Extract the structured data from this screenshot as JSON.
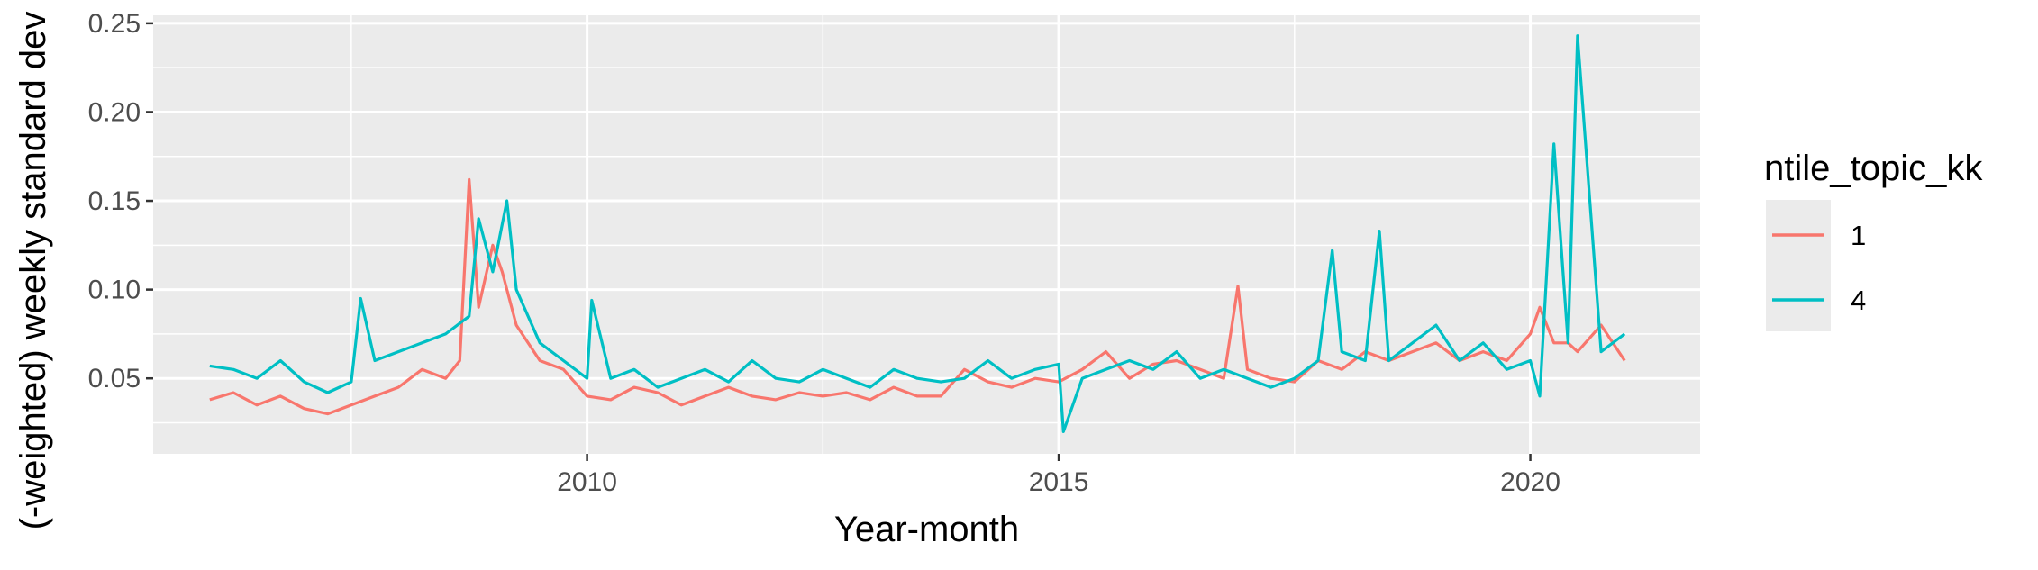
{
  "chart_data": {
    "type": "line",
    "title": "",
    "xlabel": "Year-month",
    "ylabel": "(-weighted) weekly standard dev",
    "xlim": [
      2005.4,
      2021.8
    ],
    "ylim": [
      0.0075,
      0.2545
    ],
    "x_ticks": [
      2010,
      2015,
      2020
    ],
    "x_tick_labels": [
      "2010",
      "2015",
      "2020"
    ],
    "y_ticks": [
      0.05,
      0.1,
      0.15,
      0.2,
      0.25
    ],
    "y_tick_labels": [
      "0.05",
      "0.10",
      "0.15",
      "0.20",
      "0.25"
    ],
    "grid": true,
    "legend": {
      "title": "ntile_topic_kk",
      "position": "right"
    },
    "series": [
      {
        "name": "1",
        "color": "#F8766D",
        "x": [
          2006.0,
          2006.25,
          2006.5,
          2006.75,
          2007.0,
          2007.25,
          2007.5,
          2007.75,
          2008.0,
          2008.25,
          2008.5,
          2008.65,
          2008.75,
          2008.85,
          2009.0,
          2009.1,
          2009.25,
          2009.5,
          2009.75,
          2010.0,
          2010.25,
          2010.5,
          2010.75,
          2011.0,
          2011.25,
          2011.5,
          2011.75,
          2012.0,
          2012.25,
          2012.5,
          2012.75,
          2013.0,
          2013.25,
          2013.5,
          2013.75,
          2014.0,
          2014.25,
          2014.5,
          2014.75,
          2015.0,
          2015.25,
          2015.5,
          2015.75,
          2016.0,
          2016.25,
          2016.5,
          2016.75,
          2016.9,
          2017.0,
          2017.25,
          2017.5,
          2017.75,
          2018.0,
          2018.25,
          2018.5,
          2018.75,
          2019.0,
          2019.25,
          2019.5,
          2019.75,
          2020.0,
          2020.1,
          2020.25,
          2020.4,
          2020.5,
          2020.75,
          2021.0
        ],
        "y": [
          0.038,
          0.042,
          0.035,
          0.04,
          0.033,
          0.03,
          0.035,
          0.04,
          0.045,
          0.055,
          0.05,
          0.06,
          0.162,
          0.09,
          0.125,
          0.11,
          0.08,
          0.06,
          0.055,
          0.04,
          0.038,
          0.045,
          0.042,
          0.035,
          0.04,
          0.045,
          0.04,
          0.038,
          0.042,
          0.04,
          0.042,
          0.038,
          0.045,
          0.04,
          0.04,
          0.055,
          0.048,
          0.045,
          0.05,
          0.048,
          0.055,
          0.065,
          0.05,
          0.058,
          0.06,
          0.055,
          0.05,
          0.102,
          0.055,
          0.05,
          0.048,
          0.06,
          0.055,
          0.065,
          0.06,
          0.065,
          0.07,
          0.06,
          0.065,
          0.06,
          0.075,
          0.09,
          0.07,
          0.07,
          0.065,
          0.08,
          0.06
        ]
      },
      {
        "name": "4",
        "color": "#00BFC4",
        "x": [
          2006.0,
          2006.25,
          2006.5,
          2006.75,
          2007.0,
          2007.25,
          2007.5,
          2007.6,
          2007.75,
          2008.0,
          2008.25,
          2008.5,
          2008.75,
          2008.85,
          2009.0,
          2009.15,
          2009.25,
          2009.5,
          2009.75,
          2010.0,
          2010.05,
          2010.25,
          2010.5,
          2010.75,
          2011.0,
          2011.25,
          2011.5,
          2011.75,
          2012.0,
          2012.25,
          2012.5,
          2012.75,
          2013.0,
          2013.25,
          2013.5,
          2013.75,
          2014.0,
          2014.25,
          2014.5,
          2014.75,
          2015.0,
          2015.05,
          2015.25,
          2015.5,
          2015.75,
          2016.0,
          2016.25,
          2016.5,
          2016.75,
          2017.0,
          2017.25,
          2017.5,
          2017.75,
          2017.9,
          2018.0,
          2018.25,
          2018.4,
          2018.5,
          2018.75,
          2019.0,
          2019.25,
          2019.5,
          2019.75,
          2020.0,
          2020.1,
          2020.25,
          2020.4,
          2020.5,
          2020.75,
          2021.0
        ],
        "y": [
          0.057,
          0.055,
          0.05,
          0.06,
          0.048,
          0.042,
          0.048,
          0.095,
          0.06,
          0.065,
          0.07,
          0.075,
          0.085,
          0.14,
          0.11,
          0.15,
          0.1,
          0.07,
          0.06,
          0.05,
          0.094,
          0.05,
          0.055,
          0.045,
          0.05,
          0.055,
          0.048,
          0.06,
          0.05,
          0.048,
          0.055,
          0.05,
          0.045,
          0.055,
          0.05,
          0.048,
          0.05,
          0.06,
          0.05,
          0.055,
          0.058,
          0.02,
          0.05,
          0.055,
          0.06,
          0.055,
          0.065,
          0.05,
          0.055,
          0.05,
          0.045,
          0.05,
          0.06,
          0.122,
          0.065,
          0.06,
          0.133,
          0.06,
          0.07,
          0.08,
          0.06,
          0.07,
          0.055,
          0.06,
          0.04,
          0.182,
          0.07,
          0.243,
          0.065,
          0.075
        ]
      }
    ]
  }
}
